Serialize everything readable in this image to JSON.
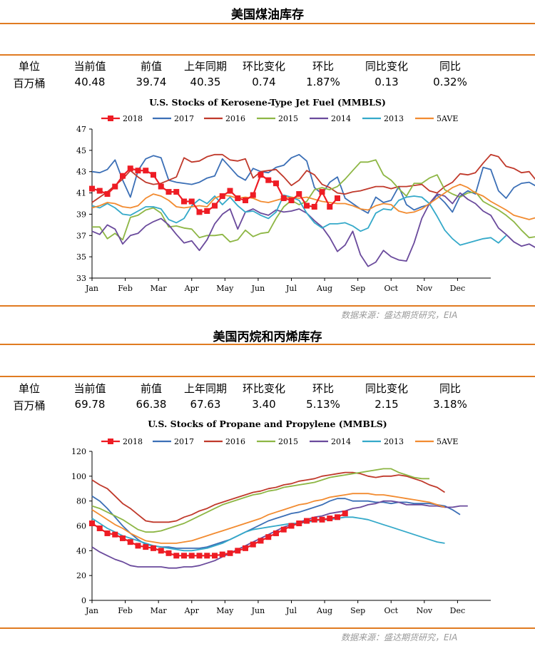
{
  "panels": [
    {
      "section_title": "美国煤油库存",
      "headers": [
        "单位",
        "当前值",
        "前值",
        "上年同期",
        "环比变化",
        "环比",
        "同比变化",
        "同比"
      ],
      "values": [
        "百万桶",
        "40.48",
        "39.74",
        "40.35",
        "0.74",
        "1.87%",
        "0.13",
        "0.32%"
      ],
      "source": "数据来源：盛达期货研究，EIA"
    },
    {
      "section_title": "美国丙烷和丙烯库存",
      "headers": [
        "单位",
        "当前值",
        "前值",
        "上年同期",
        "环比变化",
        "环比",
        "同比变化",
        "同比"
      ],
      "values": [
        "百万桶",
        "69.78",
        "66.38",
        "67.63",
        "3.40",
        "5.13%",
        "2.15",
        "3.18%"
      ],
      "source": "数据来源：盛达期货研究，EIA"
    }
  ],
  "chart_data": [
    {
      "type": "line",
      "title": "U.S. Stocks of Kerosene-Type Jet Fuel (MMBLS)",
      "x_ticks": [
        "Jan",
        "Feb",
        "Mar",
        "Apr",
        "May",
        "Jun",
        "Jul",
        "Aug",
        "Sep",
        "Oct",
        "Nov",
        "Dec"
      ],
      "ylim": [
        33,
        47
      ],
      "y_ticks": [
        33,
        35,
        37,
        39,
        41,
        43,
        45,
        47
      ],
      "legend_position": "top",
      "colors": {
        "2018": "#ee1c24",
        "2017": "#3b6fb6",
        "2016": "#c0392b",
        "2015": "#8db644",
        "2014": "#6a4a9c",
        "2013": "#34a9c9",
        "5AVE": "#f28b30"
      },
      "series": [
        {
          "name": "2018",
          "marker": "square",
          "values": [
            41.4,
            41.2,
            40.9,
            41.6,
            42.6,
            43.3,
            43.1,
            43.1,
            42.7,
            41.6,
            41.1,
            41.1,
            40.2,
            40.2,
            39.2,
            39.3,
            39.8,
            40.7,
            41.2,
            40.5,
            40.3,
            40.8,
            42.7,
            42.2,
            41.9,
            40.5,
            40.3,
            40.9,
            39.8,
            39.7,
            41.1,
            39.7,
            40.5
          ]
        },
        {
          "name": "2017",
          "values": [
            43.0,
            42.9,
            43.2,
            44.1,
            42.2,
            40.6,
            43.1,
            44.2,
            44.5,
            44.3,
            42.2,
            42.0,
            41.9,
            41.8,
            42.0,
            42.4,
            42.6,
            44.2,
            43.4,
            42.6,
            42.2,
            43.3,
            43.0,
            42.9,
            43.4,
            43.6,
            44.3,
            44.6,
            44.0,
            41.5,
            40.9,
            42.0,
            42.5,
            40.5,
            40.0,
            39.5,
            39.1,
            40.6,
            40.1,
            40.3,
            41.6,
            39.9,
            39.4,
            39.7,
            39.9,
            40.8,
            40.1,
            39.2,
            40.7,
            41.2,
            40.9,
            43.4,
            43.2,
            41.2,
            40.5,
            41.5,
            41.9,
            42.0,
            41.6,
            40.2,
            40.3,
            40.6,
            41.7,
            41.8,
            40.7,
            40.2,
            40.9,
            40.2,
            39.8,
            39.7
          ]
        },
        {
          "name": "2016",
          "values": [
            40.1,
            40.6,
            41.1,
            41.7,
            42.3,
            43.1,
            42.5,
            42.0,
            41.8,
            41.9,
            42.2,
            42.5,
            44.3,
            43.9,
            44.0,
            44.4,
            44.6,
            44.6,
            44.1,
            44.0,
            44.2,
            42.4,
            43.0,
            43.1,
            43.2,
            42.5,
            41.7,
            42.2,
            43.1,
            42.7,
            41.8,
            41.5,
            41.0,
            40.9,
            41.1,
            41.2,
            41.4,
            41.6,
            41.6,
            41.4,
            41.6,
            41.6,
            41.7,
            41.8,
            41.2,
            41.0,
            41.6,
            42.0,
            42.8,
            42.7,
            42.9,
            43.8,
            44.6,
            44.4,
            43.5,
            43.3,
            42.9,
            43.0,
            42.1,
            41.9,
            42.3,
            42.5,
            42.3,
            42.6,
            42.3,
            42.2,
            43.8,
            44.2,
            43.7,
            42.1
          ]
        },
        {
          "name": "2015",
          "values": [
            37.8,
            37.8,
            36.7,
            37.2,
            36.6,
            38.7,
            38.9,
            39.4,
            39.6,
            39.1,
            37.8,
            37.9,
            37.7,
            37.6,
            36.8,
            37.0,
            37.0,
            37.1,
            36.4,
            36.6,
            37.5,
            36.9,
            37.2,
            37.3,
            38.6,
            39.7,
            40.3,
            39.9,
            40.2,
            41.3,
            41.5,
            41.3,
            41.6,
            42.3,
            43.1,
            43.9,
            43.9,
            44.1,
            42.7,
            42.2,
            41.4,
            40.7,
            41.9,
            41.9,
            42.4,
            42.7,
            41.3,
            40.9,
            40.6,
            41.0,
            41.1,
            40.2,
            39.8,
            39.4,
            38.9,
            38.3,
            37.5,
            36.8,
            36.9,
            36.7,
            37.6,
            38.1,
            37.7,
            37.2,
            37.8,
            38.3,
            40.1,
            40.9
          ]
        },
        {
          "name": "2014",
          "values": [
            37.4,
            37.1,
            38.0,
            37.6,
            36.2,
            37.0,
            37.2,
            37.9,
            38.3,
            38.6,
            38.0,
            37.1,
            36.3,
            36.5,
            35.6,
            36.6,
            38.1,
            39.0,
            39.5,
            37.6,
            39.2,
            39.5,
            39.1,
            38.9,
            39.4,
            39.2,
            39.3,
            39.5,
            39.1,
            38.4,
            37.8,
            36.8,
            35.5,
            36.1,
            37.4,
            35.2,
            34.1,
            34.5,
            35.6,
            35.0,
            34.7,
            34.6,
            36.3,
            38.6,
            40.0,
            40.9,
            40.7,
            40.0,
            41.0,
            40.4,
            40.0,
            39.3,
            38.9,
            37.7,
            37.1,
            36.4,
            36.0,
            36.2,
            35.8,
            35.6,
            35.7,
            36.1,
            36.3,
            36.4,
            35.9,
            36.9
          ]
        },
        {
          "name": "2013",
          "values": [
            39.8,
            39.6,
            40.0,
            39.6,
            39.0,
            38.9,
            39.3,
            39.7,
            39.7,
            39.5,
            38.5,
            38.2,
            38.6,
            39.8,
            40.4,
            40.0,
            40.7,
            39.9,
            40.6,
            39.8,
            39.2,
            39.3,
            38.9,
            38.6,
            39.2,
            40.8,
            40.6,
            40.3,
            39.1,
            38.2,
            37.7,
            38.1,
            38.1,
            38.2,
            37.9,
            37.4,
            37.7,
            39.1,
            39.5,
            39.4,
            40.3,
            40.6,
            40.7,
            40.6,
            40.0,
            38.8,
            37.5,
            36.7,
            36.1,
            36.3,
            36.5,
            36.7,
            36.8,
            36.3,
            37.0
          ]
        },
        {
          "name": "5AVE",
          "values": [
            39.6,
            39.8,
            40.1,
            40.0,
            39.7,
            39.6,
            39.8,
            40.5,
            40.9,
            40.7,
            40.3,
            39.7,
            39.6,
            39.7,
            39.8,
            39.7,
            40.5,
            40.8,
            40.7,
            40.5,
            40.6,
            40.5,
            40.2,
            40.1,
            40.3,
            40.5,
            40.6,
            40.5,
            40.6,
            40.4,
            40.2,
            40.1,
            40.0,
            40.0,
            39.8,
            39.5,
            39.4,
            39.8,
            40.0,
            39.9,
            39.3,
            39.1,
            39.2,
            39.5,
            40.0,
            40.5,
            41.0,
            41.5,
            41.8,
            41.5,
            41.0,
            40.7,
            40.2,
            39.8,
            39.4,
            38.9,
            38.7,
            38.5,
            38.7,
            38.9,
            39.1,
            39.3,
            39.5,
            39.3,
            39.0,
            39.3
          ]
        }
      ]
    },
    {
      "type": "line",
      "title": "U.S. Stocks of Propane and Propylene (MMBLS)",
      "x_ticks": [
        "Jan",
        "Feb",
        "Mar",
        "Apr",
        "May",
        "Jun",
        "Jul",
        "Aug",
        "Sep",
        "Oct",
        "Nov",
        "Dec"
      ],
      "ylim": [
        0,
        120
      ],
      "y_ticks": [
        0,
        20,
        40,
        60,
        80,
        100,
        120
      ],
      "legend_position": "top",
      "colors": {
        "2018": "#ee1c24",
        "2017": "#3b6fb6",
        "2016": "#c0392b",
        "2015": "#8db644",
        "2014": "#6a4a9c",
        "2013": "#34a9c9",
        "5AVE": "#f28b30"
      },
      "series": [
        {
          "name": "2018",
          "marker": "square",
          "values": [
            62,
            58,
            54,
            53,
            50,
            47,
            44,
            43,
            42,
            40,
            38,
            36,
            36,
            36,
            36,
            36,
            36,
            37,
            38,
            40,
            42,
            45,
            48,
            51,
            54,
            57,
            60,
            62,
            64,
            65,
            65,
            66,
            67,
            70
          ]
        },
        {
          "name": "2017",
          "values": [
            84,
            80,
            74,
            67,
            60,
            54,
            49,
            45,
            44,
            43,
            43,
            42,
            42,
            42,
            42,
            43,
            45,
            47,
            49,
            52,
            55,
            58,
            61,
            64,
            66,
            68,
            70,
            71,
            73,
            75,
            77,
            80,
            82,
            82,
            80,
            80,
            80,
            79,
            79,
            78,
            79,
            79,
            78,
            78,
            78,
            77,
            76,
            73,
            69
          ]
        },
        {
          "name": "2016",
          "values": [
            97,
            93,
            90,
            84,
            78,
            74,
            69,
            64,
            63,
            63,
            63,
            64,
            67,
            69,
            72,
            74,
            77,
            79,
            81,
            83,
            85,
            87,
            88,
            90,
            91,
            93,
            94,
            96,
            97,
            98,
            100,
            101,
            102,
            103,
            103,
            102,
            100,
            99,
            100,
            100,
            101,
            100,
            98,
            96,
            93,
            91,
            87
          ]
        },
        {
          "name": "2015",
          "values": [
            76,
            74,
            71,
            68,
            65,
            61,
            57,
            55,
            55,
            56,
            58,
            60,
            62,
            65,
            68,
            71,
            74,
            77,
            79,
            81,
            83,
            85,
            86,
            88,
            89,
            91,
            92,
            93,
            94,
            95,
            97,
            99,
            100,
            101,
            102,
            103,
            104,
            105,
            106,
            106,
            103,
            101,
            99,
            98,
            98
          ]
        },
        {
          "name": "2014",
          "values": [
            43,
            39,
            36,
            33,
            31,
            28,
            27,
            27,
            27,
            27,
            26,
            26,
            27,
            27,
            28,
            30,
            32,
            35,
            38,
            41,
            44,
            47,
            50,
            53,
            56,
            59,
            61,
            63,
            65,
            67,
            68,
            70,
            71,
            72,
            74,
            75,
            77,
            78,
            80,
            80,
            79,
            77,
            77,
            77,
            76,
            76,
            75,
            75,
            76,
            76
          ]
        },
        {
          "name": "2013",
          "values": [
            66,
            62,
            58,
            55,
            52,
            50,
            48,
            46,
            44,
            43,
            42,
            41,
            40,
            40,
            41,
            42,
            44,
            46,
            49,
            52,
            55,
            57,
            58,
            59,
            60,
            61,
            62,
            62,
            63,
            64,
            65,
            65,
            66,
            67,
            67,
            66,
            65,
            63,
            61,
            59,
            57,
            55,
            53,
            51,
            49,
            47,
            46
          ]
        },
        {
          "name": "5AVE",
          "values": [
            73,
            69,
            65,
            61,
            58,
            54,
            51,
            48,
            47,
            46,
            46,
            46,
            47,
            48,
            50,
            52,
            54,
            56,
            58,
            60,
            62,
            64,
            66,
            69,
            71,
            73,
            75,
            77,
            78,
            80,
            81,
            83,
            84,
            85,
            86,
            86,
            86,
            85,
            85,
            84,
            83,
            82,
            81,
            80,
            79,
            77,
            75
          ]
        }
      ]
    }
  ]
}
